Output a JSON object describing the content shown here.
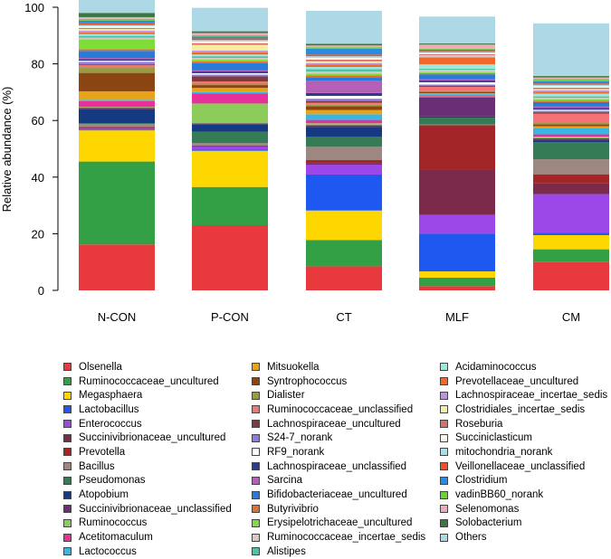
{
  "chart_data": {
    "type": "stacked-bar",
    "title": "",
    "xlabel": "",
    "ylabel": "Relative abundance (%)",
    "ylim": [
      0,
      100
    ],
    "yticks": [
      0,
      20,
      40,
      60,
      80,
      100
    ],
    "categories": [
      "N-CON",
      "P-CON",
      "CT",
      "MLF",
      "CM"
    ],
    "series": [
      {
        "name": "Olsenella",
        "color": "#e8393d",
        "values": [
          16.2,
          23.0,
          8.5,
          1.5,
          10.0
        ]
      },
      {
        "name": "Ruminococcaceae_uncultured",
        "color": "#34a046",
        "values": [
          29.3,
          13.5,
          9.3,
          3.0,
          4.5
        ]
      },
      {
        "name": "Megasphaera",
        "color": "#ffd700",
        "values": [
          11.0,
          12.8,
          10.4,
          2.2,
          5.0
        ]
      },
      {
        "name": "Lactobacillus",
        "color": "#1e58f0",
        "values": [
          0.3,
          0.5,
          12.7,
          13.3,
          0.8
        ]
      },
      {
        "name": "Enterococcus",
        "color": "#9c47e8",
        "values": [
          0.3,
          1.0,
          3.5,
          6.7,
          13.7
        ]
      },
      {
        "name": "Succinivibrionaceae_uncultured",
        "color": "#7b2a4a",
        "values": [
          0.3,
          0.2,
          0.6,
          15.8,
          3.8
        ]
      },
      {
        "name": "Prevotella",
        "color": "#a42528",
        "values": [
          0.3,
          0.2,
          1.0,
          15.8,
          3.2
        ]
      },
      {
        "name": "Bacillus",
        "color": "#9e8780",
        "values": [
          1.0,
          0.8,
          4.7,
          0.3,
          5.3
        ]
      },
      {
        "name": "Pseudomonas",
        "color": "#357c56",
        "values": [
          0.3,
          4.0,
          3.5,
          2.4,
          6.0
        ]
      },
      {
        "name": "Atopobium",
        "color": "#163a82",
        "values": [
          5.0,
          2.5,
          3.5,
          0.4,
          0.8
        ]
      },
      {
        "name": "Succinivibrionaceae_unclassified",
        "color": "#6a2e76",
        "values": [
          0.5,
          0.5,
          0.6,
          6.8,
          0.6
        ]
      },
      {
        "name": "Ruminococcus",
        "color": "#8ccc5a",
        "values": [
          0.3,
          7.0,
          0.7,
          0.3,
          0.6
        ]
      },
      {
        "name": "Acetitomaculum",
        "color": "#e8309a",
        "values": [
          2.0,
          3.5,
          1.2,
          0.4,
          0.8
        ]
      },
      {
        "name": "Lactococcus",
        "color": "#38b7e5",
        "values": [
          0.5,
          0.5,
          2.0,
          0.4,
          2.3
        ]
      },
      {
        "name": "Mitsuokella",
        "color": "#e8a418",
        "values": [
          3.0,
          1.5,
          1.5,
          0.3,
          0.6
        ]
      },
      {
        "name": "Syntrophococcus",
        "color": "#8b4513",
        "values": [
          6.5,
          1.0,
          1.3,
          0.5,
          0.6
        ]
      },
      {
        "name": "Dialister",
        "color": "#9a9a42",
        "values": [
          2.0,
          0.5,
          0.6,
          0.3,
          0.5
        ]
      },
      {
        "name": "Ruminococcaceae_unclassified",
        "color": "#f27474",
        "values": [
          0.8,
          0.8,
          0.7,
          1.5,
          3.3
        ]
      },
      {
        "name": "Lachnospiraceae_uncultured",
        "color": "#7e3b3b",
        "values": [
          0.3,
          1.8,
          0.6,
          0.4,
          0.5
        ]
      },
      {
        "name": "S24-7_norank",
        "color": "#9278e5",
        "values": [
          0.8,
          0.6,
          0.8,
          0.4,
          0.5
        ]
      },
      {
        "name": "RF9_norank",
        "color": "#ffffff",
        "values": [
          0.4,
          0.5,
          1.0,
          0.8,
          0.4
        ]
      },
      {
        "name": "Lachnospiraceae_unclassified",
        "color": "#2e3a8c",
        "values": [
          0.6,
          0.6,
          1.0,
          0.6,
          0.6
        ]
      },
      {
        "name": "Sarcina",
        "color": "#b560b8",
        "values": [
          0.4,
          0.5,
          4.4,
          0.4,
          0.5
        ]
      },
      {
        "name": "Bifidobacteriaceae_uncultured",
        "color": "#2a7bd8",
        "values": [
          2.5,
          2.5,
          1.2,
          1.8,
          1.6
        ]
      },
      {
        "name": "Butyrivibrio",
        "color": "#e0702a",
        "values": [
          0.6,
          0.6,
          0.6,
          0.4,
          0.5
        ]
      },
      {
        "name": "Erysipelotrichaceae_uncultured",
        "color": "#7dde3a",
        "values": [
          3.5,
          0.6,
          0.6,
          0.4,
          0.5
        ]
      },
      {
        "name": "Ruminococcaceae_incertae_sedis",
        "color": "#d8c8c0",
        "values": [
          0.6,
          0.6,
          0.8,
          0.8,
          0.5
        ]
      },
      {
        "name": "Alistipes",
        "color": "#4bc4a8",
        "values": [
          0.6,
          0.6,
          0.8,
          0.4,
          0.5
        ]
      },
      {
        "name": "Acidaminococcus",
        "color": "#9ee8de",
        "values": [
          0.6,
          0.6,
          0.8,
          1.5,
          1.0
        ]
      },
      {
        "name": "Prevotellaceae_uncultured",
        "color": "#f0682a",
        "values": [
          0.6,
          0.8,
          0.8,
          2.4,
          0.6
        ]
      },
      {
        "name": "Lachnospiraceae_incertae_sedis",
        "color": "#b896e0",
        "values": [
          0.6,
          0.6,
          0.6,
          0.4,
          0.5
        ]
      },
      {
        "name": "Clostridiales_incertae_sedis",
        "color": "#f6eda0",
        "values": [
          0.6,
          2.0,
          0.6,
          0.4,
          0.5
        ]
      },
      {
        "name": "Roseburia",
        "color": "#d87070",
        "values": [
          0.4,
          0.6,
          0.6,
          0.4,
          0.5
        ]
      },
      {
        "name": "Succiniclasticum",
        "color": "#fdf6e6",
        "values": [
          0.6,
          0.6,
          0.6,
          0.4,
          0.5
        ]
      },
      {
        "name": "mitochondria_norank",
        "color": "#a8e0e8",
        "values": [
          0.4,
          0.5,
          0.6,
          0.4,
          0.5
        ]
      },
      {
        "name": "Veillonellaceae_unclassified",
        "color": "#e85030",
        "values": [
          0.6,
          0.6,
          0.6,
          0.4,
          0.5
        ]
      },
      {
        "name": "Clostridium",
        "color": "#2a8ce0",
        "values": [
          1.0,
          0.6,
          2.0,
          0.4,
          0.8
        ]
      },
      {
        "name": "vadinBB60_norank",
        "color": "#6cd23a",
        "values": [
          0.6,
          0.5,
          0.6,
          0.3,
          0.8
        ]
      },
      {
        "name": "Selenomonas",
        "color": "#f0aabc",
        "values": [
          0.6,
          0.8,
          0.6,
          1.5,
          0.5
        ]
      },
      {
        "name": "Solobacterium",
        "color": "#3a7840",
        "values": [
          1.5,
          0.6,
          0.6,
          0.4,
          0.5
        ]
      },
      {
        "name": "Others",
        "color": "#add8e6",
        "values": [
          5.6,
          8.3,
          11.6,
          9.5,
          18.6
        ]
      }
    ]
  }
}
